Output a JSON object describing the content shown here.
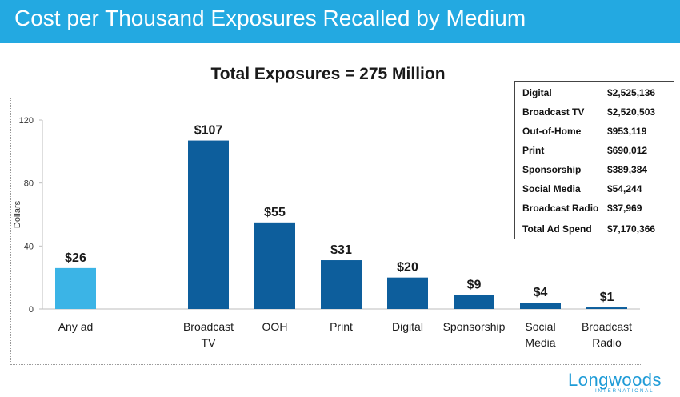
{
  "header": {
    "title": "Cost per Thousand Exposures Recalled by Medium"
  },
  "colors": {
    "header_bg": "#23a9e1",
    "highlight_bar": "#3bb4e6",
    "bar": "#0d5e9c"
  },
  "chart_data": {
    "type": "bar",
    "title": "Total Exposures = 275 Million",
    "ylabel": "Dollars",
    "xlabel": "",
    "ylim": [
      0,
      120
    ],
    "yticks": [
      "0",
      "40",
      "80",
      "120"
    ],
    "categories": [
      [
        "Any ad"
      ],
      [
        ""
      ],
      [
        "Broadcast",
        "TV"
      ],
      [
        "OOH"
      ],
      [
        "Print"
      ],
      [
        "Digital"
      ],
      [
        "Sponsorship"
      ],
      [
        "Social",
        "Media"
      ],
      [
        "Broadcast",
        "Radio"
      ]
    ],
    "values": [
      26,
      null,
      107,
      55,
      31,
      20,
      9,
      4,
      1
    ],
    "data_labels": [
      "$26",
      "",
      "$107",
      "$55",
      "$31",
      "$20",
      "$9",
      "$4",
      "$1"
    ],
    "highlight_index": 0
  },
  "spend_table": {
    "rows": [
      {
        "label": "Digital",
        "value": "$2,525,136"
      },
      {
        "label": "Broadcast TV",
        "value": "$2,520,503"
      },
      {
        "label": "Out-of-Home",
        "value": "$953,119"
      },
      {
        "label": "Print",
        "value": "$690,012"
      },
      {
        "label": "Sponsorship",
        "value": "$389,384"
      },
      {
        "label": "Social Media",
        "value": "$54,244"
      },
      {
        "label": "Broadcast Radio",
        "value": "$37,969"
      }
    ],
    "total": {
      "label": "Total Ad Spend",
      "value": "$7,170,366"
    }
  },
  "logo": {
    "name": "Longwoods",
    "subtitle": "INTERNATIONAL"
  }
}
